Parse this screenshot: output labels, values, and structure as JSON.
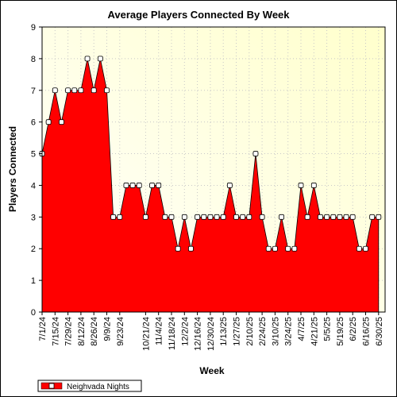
{
  "chart_data": {
    "type": "area",
    "title": "Average Players Connected By Week",
    "xlabel": "Week",
    "ylabel": "Players Connected",
    "ylim": [
      0,
      9
    ],
    "yticks": [
      0,
      1,
      2,
      3,
      4,
      5,
      6,
      7,
      8,
      9
    ],
    "grid": true,
    "legend_position": "bottom-left",
    "x_tick_labels": [
      "7/1/24",
      "7/15/24",
      "7/29/24",
      "8/12/24",
      "8/26/24",
      "9/9/24",
      "9/23/24",
      "10/21/24",
      "11/4/24",
      "11/18/24",
      "12/2/24",
      "12/16/24",
      "12/30/24",
      "1/13/25",
      "1/27/25",
      "2/10/25",
      "2/24/25",
      "3/10/25",
      "3/24/25",
      "4/7/25",
      "4/21/25",
      "5/5/25",
      "5/19/25",
      "6/2/25",
      "6/16/25",
      "6/30/25"
    ],
    "series": [
      {
        "name": "Neighvada Nights",
        "color": "#ff0000",
        "x": [
          "7/1/24",
          "7/8/24",
          "7/15/24",
          "7/22/24",
          "7/29/24",
          "8/5/24",
          "8/12/24",
          "8/19/24",
          "8/26/24",
          "9/2/24",
          "9/9/24",
          "9/16/24",
          "9/23/24",
          "9/30/24",
          "10/7/24",
          "10/14/24",
          "10/21/24",
          "10/28/24",
          "11/4/24",
          "11/11/24",
          "11/18/24",
          "11/25/24",
          "12/2/24",
          "12/9/24",
          "12/16/24",
          "12/23/24",
          "12/30/24",
          "1/6/25",
          "1/13/25",
          "1/20/25",
          "1/27/25",
          "2/3/25",
          "2/10/25",
          "2/17/25",
          "2/24/25",
          "3/3/25",
          "3/10/25",
          "3/17/25",
          "3/24/25",
          "3/31/25",
          "4/7/25",
          "4/14/25",
          "4/21/25",
          "4/28/25",
          "5/5/25",
          "5/12/25",
          "5/19/25",
          "5/26/25",
          "6/2/25",
          "6/9/25",
          "6/16/25",
          "6/23/25",
          "6/30/25"
        ],
        "values": [
          5,
          6,
          7,
          6,
          7,
          7,
          7,
          8,
          7,
          8,
          7,
          3,
          3,
          4,
          4,
          4,
          3,
          4,
          4,
          3,
          3,
          2,
          3,
          2,
          3,
          3,
          3,
          3,
          3,
          4,
          3,
          3,
          3,
          5,
          3,
          2,
          2,
          3,
          2,
          2,
          4,
          3,
          4,
          3,
          3,
          3,
          3,
          3,
          3,
          2,
          2,
          3,
          3
        ]
      }
    ]
  }
}
